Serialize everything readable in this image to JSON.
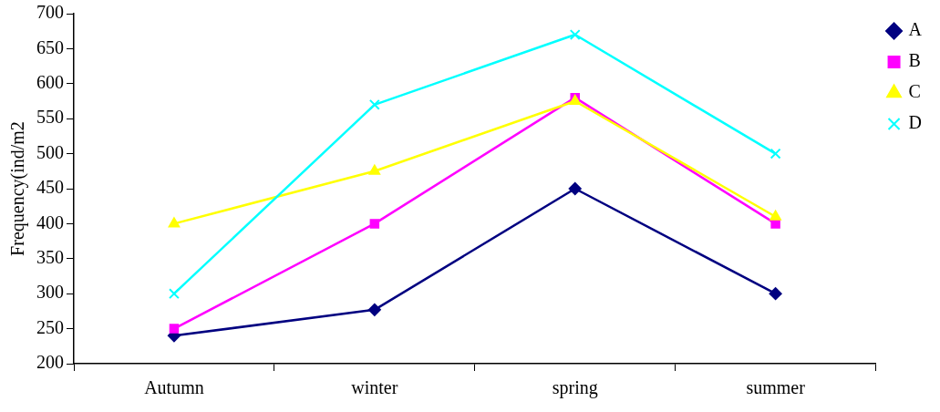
{
  "chart_data": {
    "type": "line",
    "ylabel": "Frequency(ind/m2",
    "categories": [
      "Autumn",
      "winter",
      "spring",
      "summer"
    ],
    "series": [
      {
        "name": "A",
        "color": "#000080",
        "marker": "diamond",
        "values": [
          240,
          277,
          450,
          300
        ]
      },
      {
        "name": "B",
        "color": "#ff00ff",
        "marker": "square",
        "values": [
          250,
          400,
          580,
          400
        ]
      },
      {
        "name": "C",
        "color": "#ffff00",
        "marker": "triangle",
        "values": [
          400,
          475,
          575,
          410
        ]
      },
      {
        "name": "D",
        "color": "#00ffff",
        "marker": "cross",
        "values": [
          300,
          570,
          670,
          500
        ]
      }
    ],
    "ylim": [
      200,
      700
    ],
    "yticks": [
      200,
      250,
      300,
      350,
      400,
      450,
      500,
      550,
      600,
      650,
      700
    ],
    "grid": false,
    "legend": "top right",
    "line_style": "solid"
  }
}
